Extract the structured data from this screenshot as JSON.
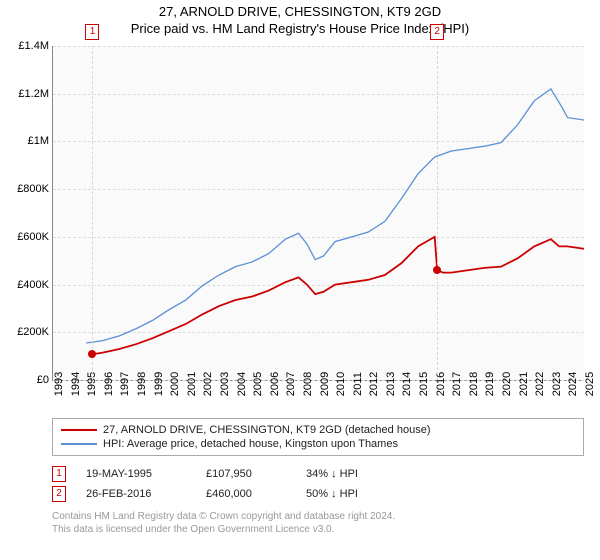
{
  "title": "27, ARNOLD DRIVE, CHESSINGTON, KT9 2GD",
  "subtitle": "Price paid vs. HM Land Registry's House Price Index (HPI)",
  "chart": {
    "type": "line",
    "background_color": "#fafafa",
    "grid_color_h": "#dddddd",
    "grid_color_v": "#f2cccc",
    "ylim": [
      0,
      1400000
    ],
    "ytick_step": 200000,
    "yticks": [
      "£0",
      "£200K",
      "£400K",
      "£600K",
      "£800K",
      "£1M",
      "£1.2M",
      "£1.4M"
    ],
    "xlim": [
      1993,
      2025
    ],
    "xticks": [
      "1993",
      "1994",
      "1995",
      "1996",
      "1997",
      "1998",
      "1999",
      "2000",
      "2001",
      "2002",
      "2003",
      "2004",
      "2005",
      "2006",
      "2007",
      "2008",
      "2009",
      "2010",
      "2011",
      "2012",
      "2013",
      "2014",
      "2015",
      "2016",
      "2017",
      "2018",
      "2019",
      "2020",
      "2021",
      "2022",
      "2023",
      "2024",
      "2025"
    ],
    "series": [
      {
        "name": "price_paid",
        "label": "27, ARNOLD DRIVE, CHESSINGTON, KT9 2GD (detached house)",
        "color": "#cc0000",
        "line_width": 1.8,
        "points": [
          [
            1995.38,
            107950
          ],
          [
            1996,
            115000
          ],
          [
            1997,
            130000
          ],
          [
            1998,
            150000
          ],
          [
            1999,
            175000
          ],
          [
            2000,
            205000
          ],
          [
            2001,
            235000
          ],
          [
            2002,
            275000
          ],
          [
            2003,
            310000
          ],
          [
            2004,
            335000
          ],
          [
            2005,
            350000
          ],
          [
            2006,
            375000
          ],
          [
            2007,
            410000
          ],
          [
            2007.8,
            430000
          ],
          [
            2008.3,
            400000
          ],
          [
            2008.8,
            360000
          ],
          [
            2009.3,
            370000
          ],
          [
            2010,
            400000
          ],
          [
            2011,
            410000
          ],
          [
            2012,
            420000
          ],
          [
            2013,
            440000
          ],
          [
            2014,
            490000
          ],
          [
            2015,
            560000
          ],
          [
            2016,
            600000
          ],
          [
            2016.15,
            460000
          ],
          [
            2016.5,
            450000
          ],
          [
            2017,
            450000
          ],
          [
            2018,
            460000
          ],
          [
            2019,
            470000
          ],
          [
            2020,
            475000
          ],
          [
            2021,
            510000
          ],
          [
            2022,
            560000
          ],
          [
            2023,
            590000
          ],
          [
            2023.5,
            560000
          ],
          [
            2024,
            560000
          ],
          [
            2025,
            550000
          ]
        ]
      },
      {
        "name": "hpi",
        "label": "HPI: Average price, detached house, Kingston upon Thames",
        "color": "#5b8fd6",
        "line_width": 1.3,
        "points": [
          [
            1995,
            155000
          ],
          [
            1996,
            165000
          ],
          [
            1997,
            185000
          ],
          [
            1998,
            215000
          ],
          [
            1999,
            250000
          ],
          [
            2000,
            295000
          ],
          [
            2001,
            335000
          ],
          [
            2002,
            395000
          ],
          [
            2003,
            440000
          ],
          [
            2004,
            475000
          ],
          [
            2005,
            495000
          ],
          [
            2006,
            530000
          ],
          [
            2007,
            590000
          ],
          [
            2007.8,
            615000
          ],
          [
            2008.3,
            570000
          ],
          [
            2008.8,
            505000
          ],
          [
            2009.3,
            520000
          ],
          [
            2010,
            580000
          ],
          [
            2011,
            600000
          ],
          [
            2012,
            620000
          ],
          [
            2013,
            665000
          ],
          [
            2014,
            760000
          ],
          [
            2015,
            865000
          ],
          [
            2016,
            935000
          ],
          [
            2017,
            960000
          ],
          [
            2018,
            970000
          ],
          [
            2019,
            980000
          ],
          [
            2020,
            995000
          ],
          [
            2021,
            1070000
          ],
          [
            2022,
            1170000
          ],
          [
            2023,
            1220000
          ],
          [
            2023.7,
            1140000
          ],
          [
            2024,
            1100000
          ],
          [
            2025,
            1090000
          ]
        ]
      }
    ],
    "sale_markers": [
      {
        "num": "1",
        "year": 1995.38,
        "price": 107950
      },
      {
        "num": "2",
        "year": 2016.15,
        "price": 460000
      }
    ]
  },
  "legend": {
    "items": [
      {
        "color": "#cc0000",
        "label": "27, ARNOLD DRIVE, CHESSINGTON, KT9 2GD (detached house)"
      },
      {
        "color": "#5b8fd6",
        "label": "HPI: Average price, detached house, Kingston upon Thames"
      }
    ]
  },
  "sales": [
    {
      "num": "1",
      "date": "19-MAY-1995",
      "price": "£107,950",
      "diff": "34% ↓ HPI"
    },
    {
      "num": "2",
      "date": "26-FEB-2016",
      "price": "£460,000",
      "diff": "50% ↓ HPI"
    }
  ],
  "footer1": "Contains HM Land Registry data © Crown copyright and database right 2024.",
  "footer2": "This data is licensed under the Open Government Licence v3.0."
}
